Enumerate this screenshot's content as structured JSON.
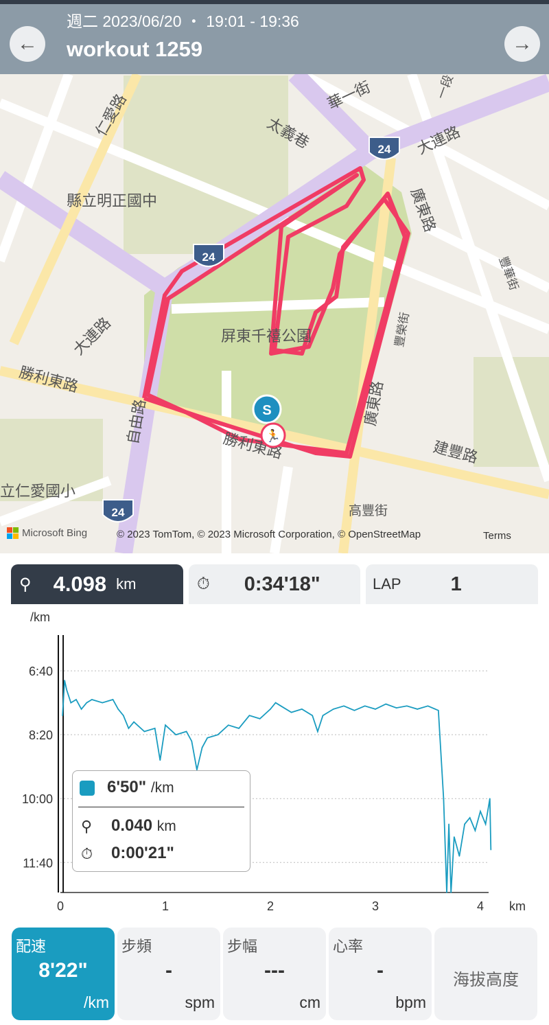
{
  "header": {
    "date": "週二 2023/06/20 ・ 19:01 - 19:36",
    "title": "workout 1259",
    "back_icon": "arrow-left-icon",
    "next_icon": "arrow-right-icon"
  },
  "map": {
    "labels": [
      "仁愛路",
      "華一街",
      "太義巷",
      "大連路",
      "縣立明正國中",
      "廣東路",
      "豐華街",
      "屏東千禧公園",
      "豐榮街",
      "大連路",
      "勝利東路",
      "自由路",
      "勝利東路",
      "廣東路",
      "建豐路",
      "立仁愛國小",
      "高豐街",
      "一段"
    ],
    "shields": [
      "24",
      "24",
      "24"
    ],
    "start_marker": "S",
    "attribution": "© 2023 TomTom, © 2023 Microsoft Corporation, © OpenStreetMap",
    "brand": "Microsoft Bing",
    "terms": "Terms",
    "route_color": "#f03c64"
  },
  "stats": {
    "distance": "4.098",
    "distance_unit": "km",
    "duration": "0:34'18\"",
    "lap_label": "LAP",
    "lap_value": "1"
  },
  "chart_data": {
    "type": "line",
    "ylabel": "/km",
    "xlabel": "km",
    "x_ticks": [
      "0",
      "1",
      "2",
      "3",
      "4"
    ],
    "y_ticks": [
      "6:40",
      "8:20",
      "10:00",
      "11:40"
    ],
    "y_inverted": true,
    "ylim": [
      344,
      747
    ],
    "xlim": [
      0,
      4.15
    ],
    "grid": "horizontal dotted",
    "color": "#1a9cc0",
    "points": [
      [
        0.02,
        470
      ],
      [
        0.04,
        415
      ],
      [
        0.06,
        430
      ],
      [
        0.1,
        450
      ],
      [
        0.15,
        445
      ],
      [
        0.2,
        460
      ],
      [
        0.25,
        450
      ],
      [
        0.3,
        445
      ],
      [
        0.4,
        450
      ],
      [
        0.5,
        445
      ],
      [
        0.55,
        460
      ],
      [
        0.6,
        470
      ],
      [
        0.65,
        490
      ],
      [
        0.7,
        480
      ],
      [
        0.8,
        495
      ],
      [
        0.9,
        490
      ],
      [
        0.95,
        540
      ],
      [
        1.0,
        485
      ],
      [
        1.1,
        500
      ],
      [
        1.2,
        495
      ],
      [
        1.25,
        510
      ],
      [
        1.3,
        555
      ],
      [
        1.35,
        520
      ],
      [
        1.4,
        505
      ],
      [
        1.5,
        500
      ],
      [
        1.6,
        485
      ],
      [
        1.7,
        490
      ],
      [
        1.8,
        470
      ],
      [
        1.9,
        475
      ],
      [
        2.0,
        460
      ],
      [
        2.05,
        450
      ],
      [
        2.1,
        455
      ],
      [
        2.2,
        465
      ],
      [
        2.3,
        460
      ],
      [
        2.4,
        470
      ],
      [
        2.45,
        495
      ],
      [
        2.5,
        470
      ],
      [
        2.6,
        460
      ],
      [
        2.7,
        455
      ],
      [
        2.8,
        462
      ],
      [
        2.9,
        455
      ],
      [
        3.0,
        460
      ],
      [
        3.1,
        452
      ],
      [
        3.2,
        458
      ],
      [
        3.3,
        455
      ],
      [
        3.4,
        460
      ],
      [
        3.5,
        455
      ],
      [
        3.6,
        462
      ],
      [
        3.65,
        600
      ],
      [
        3.68,
        747
      ],
      [
        3.7,
        640
      ],
      [
        3.72,
        747
      ],
      [
        3.75,
        660
      ],
      [
        3.8,
        690
      ],
      [
        3.85,
        640
      ],
      [
        3.9,
        630
      ],
      [
        3.95,
        650
      ],
      [
        4.0,
        620
      ],
      [
        4.05,
        640
      ],
      [
        4.09,
        600
      ],
      [
        4.1,
        680
      ]
    ],
    "cursor_x": 0.02,
    "tooltip": {
      "pace": "6'50\"",
      "pace_unit": "/km",
      "distance": "0.040",
      "distance_unit": "km",
      "time": "0:00'21\""
    }
  },
  "tiles": [
    {
      "label": "配速",
      "value": "8'22\"",
      "unit": "/km",
      "active": true
    },
    {
      "label": "步頻",
      "value": "-",
      "unit": "spm"
    },
    {
      "label": "步幅",
      "value": "---",
      "unit": "cm"
    },
    {
      "label": "心率",
      "value": "-",
      "unit": "bpm"
    },
    {
      "label": "海拔高度"
    }
  ]
}
